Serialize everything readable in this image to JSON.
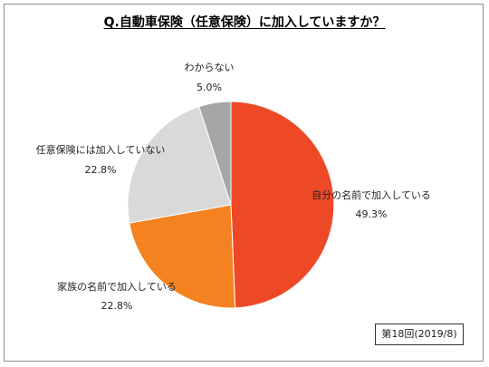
{
  "chart_data": {
    "type": "pie",
    "title": "Q.自動車保険（任意保険）に加入していますか？",
    "slices": [
      {
        "name": "自分の名前で加入している",
        "value": 49.3,
        "value_label": "49.3%",
        "color": "#EE4927"
      },
      {
        "name": "家族の名前で加入している",
        "value": 22.8,
        "value_label": "22.8%",
        "color": "#F58220"
      },
      {
        "name": "任意保険には加入していない",
        "value": 22.8,
        "value_label": "22.8%",
        "color": "#D9D9D9"
      },
      {
        "name": "わからない",
        "value": 5.0,
        "value_label": "5.0%",
        "color": "#A6A6A6"
      }
    ],
    "start": "12 o'clock",
    "direction": "clockwise",
    "labels": "outside"
  },
  "note": "第18回(2019/8)"
}
